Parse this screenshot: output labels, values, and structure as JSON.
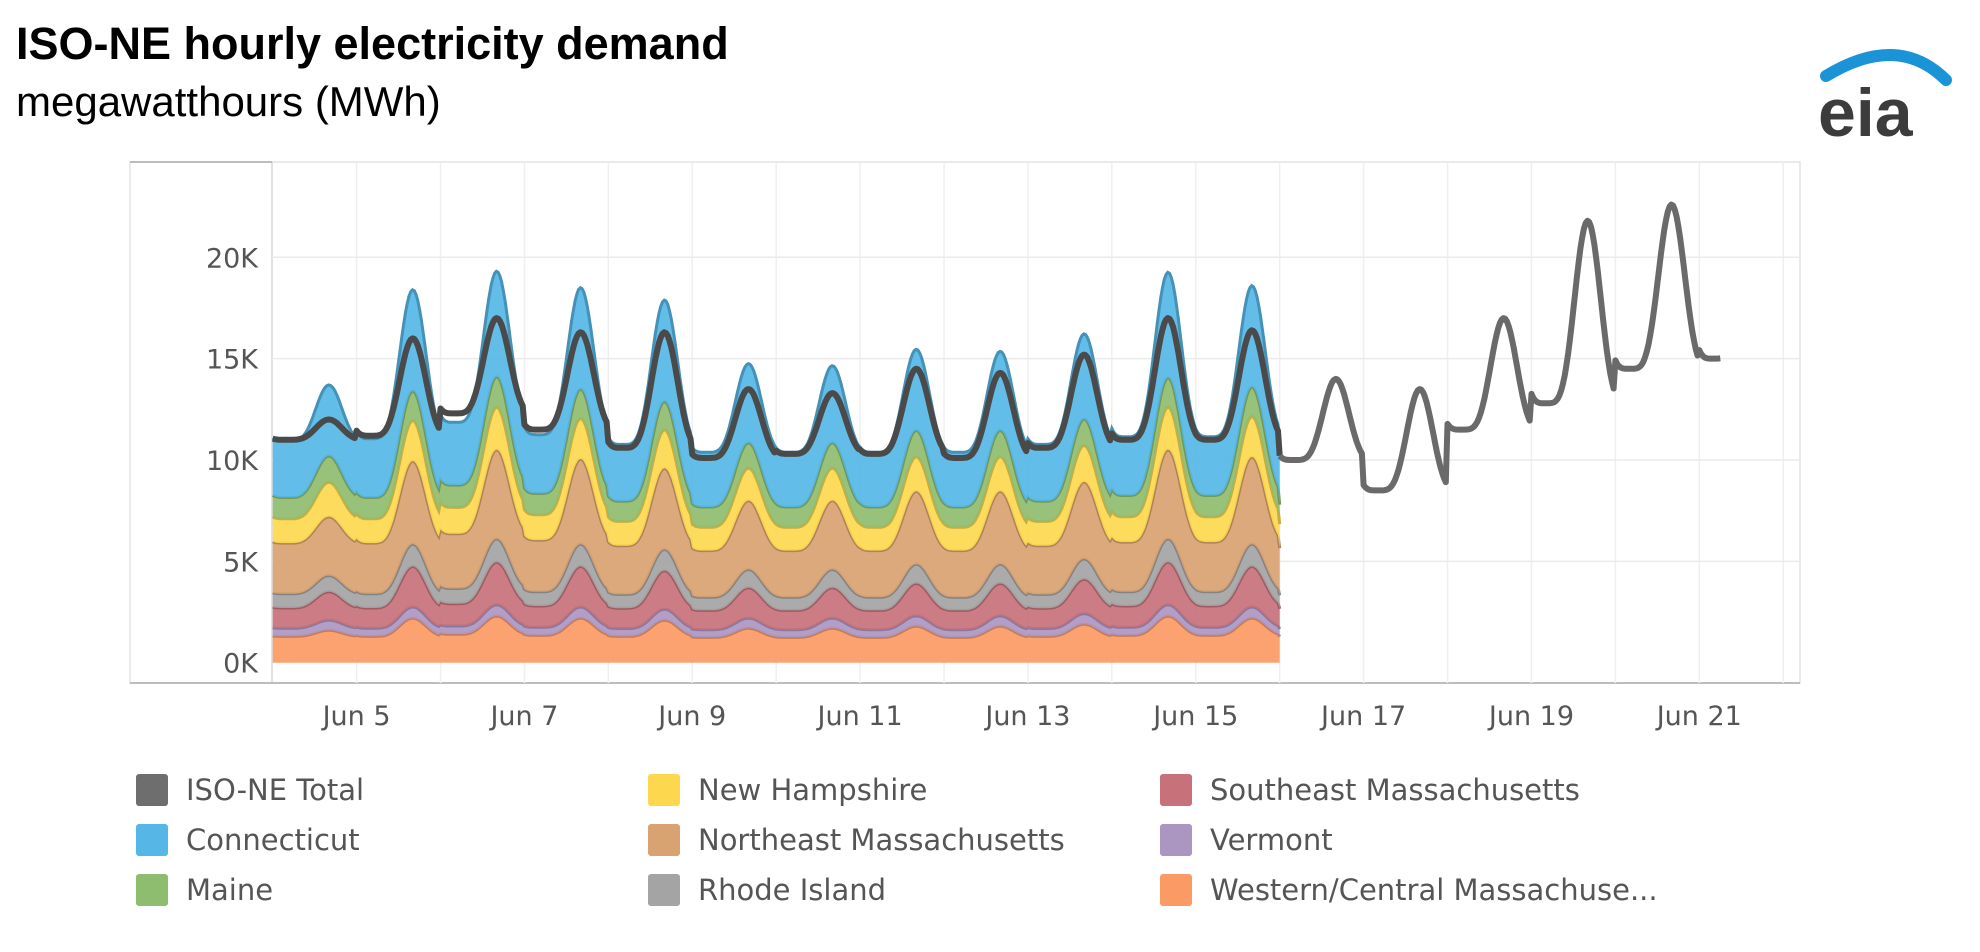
{
  "header": {
    "title": "ISO-NE hourly electricity demand",
    "subtitle": "megawatthours (MWh)"
  },
  "logo": {
    "text": "eia",
    "icon": "eia-logo",
    "arc_color": "#1a94d6",
    "text_color": "#3c3c3c"
  },
  "chart_data": {
    "type": "area",
    "title": "ISO-NE hourly electricity demand",
    "ylabel": "megawatthours (MWh)",
    "xlabel": "",
    "x_ticks": [
      "Jun 5",
      "Jun 7",
      "Jun 9",
      "Jun 11",
      "Jun 13",
      "Jun 15",
      "Jun 17",
      "Jun 19",
      "Jun 21"
    ],
    "x_tick_days": [
      5,
      7,
      9,
      11,
      13,
      15,
      17,
      19,
      21
    ],
    "y_ticks": [
      "0K",
      "5K",
      "10K",
      "15K",
      "20K"
    ],
    "y_tick_values": [
      0,
      5000,
      10000,
      15000,
      20000
    ],
    "xlim": [
      2.3,
      22.2
    ],
    "ylim": [
      -1000,
      24700
    ],
    "grid": true,
    "legend_position": "bottom",
    "stack_day_range": [
      4.0,
      16.0
    ],
    "total_line_day_range": [
      4.0,
      21.25
    ],
    "stack_order": [
      "Western/Central Massachuse...",
      "Vermont",
      "Southeast Massachusetts",
      "Rhode Island",
      "Northeast Massachusetts",
      "New Hampshire",
      "Maine",
      "Connecticut"
    ],
    "series": [
      {
        "name": "ISO-NE Total",
        "color": "#595959",
        "daily_peak": [
          [
            4,
            12000
          ],
          [
            5,
            16000
          ],
          [
            6,
            17000
          ],
          [
            7,
            16300
          ],
          [
            8,
            16300
          ],
          [
            9,
            13500
          ],
          [
            10,
            13300
          ],
          [
            11,
            14500
          ],
          [
            12,
            14300
          ],
          [
            13,
            15200
          ],
          [
            14,
            17000
          ],
          [
            15,
            16400
          ],
          [
            16,
            14000
          ],
          [
            17,
            13500
          ],
          [
            18,
            17000
          ],
          [
            19,
            21800
          ],
          [
            20,
            22600
          ],
          [
            21,
            23200
          ]
        ],
        "daily_min": [
          [
            4,
            11000
          ],
          [
            5,
            11200
          ],
          [
            6,
            12300
          ],
          [
            7,
            11500
          ],
          [
            8,
            10600
          ],
          [
            9,
            10100
          ],
          [
            10,
            10300
          ],
          [
            11,
            10300
          ],
          [
            12,
            10100
          ],
          [
            13,
            10600
          ],
          [
            14,
            11000
          ],
          [
            15,
            11000
          ],
          [
            16,
            10000
          ],
          [
            17,
            8500
          ],
          [
            18,
            11500
          ],
          [
            19,
            12800
          ],
          [
            20,
            14500
          ],
          [
            21,
            15000
          ]
        ],
        "forecast_from_day": 16.0
      },
      {
        "name": "Connecticut",
        "color": "#55b7e6",
        "daily_peak": [
          [
            4,
            3500
          ],
          [
            5,
            5000
          ],
          [
            6,
            5200
          ],
          [
            7,
            5000
          ],
          [
            8,
            5000
          ],
          [
            9,
            3900
          ],
          [
            10,
            3800
          ],
          [
            11,
            4000
          ],
          [
            12,
            3900
          ],
          [
            13,
            4200
          ],
          [
            14,
            5200
          ],
          [
            15,
            5000
          ],
          [
            16,
            4300
          ]
        ],
        "daily_min": [
          [
            4,
            2800
          ],
          [
            5,
            2900
          ],
          [
            6,
            3100
          ],
          [
            7,
            2900
          ],
          [
            8,
            2800
          ],
          [
            9,
            2700
          ],
          [
            10,
            2700
          ],
          [
            11,
            2700
          ],
          [
            12,
            2700
          ],
          [
            13,
            2800
          ],
          [
            14,
            2900
          ],
          [
            15,
            2900
          ],
          [
            16,
            2600
          ]
        ]
      },
      {
        "name": "Maine",
        "color": "#8fbd6f",
        "daily_peak": [
          [
            4,
            1300
          ],
          [
            5,
            1450
          ],
          [
            6,
            1500
          ],
          [
            7,
            1450
          ],
          [
            8,
            1400
          ],
          [
            9,
            1250
          ],
          [
            10,
            1250
          ],
          [
            11,
            1300
          ],
          [
            12,
            1300
          ],
          [
            13,
            1300
          ],
          [
            14,
            1450
          ],
          [
            15,
            1450
          ],
          [
            16,
            1300
          ]
        ],
        "daily_min": [
          [
            4,
            1050
          ],
          [
            5,
            1050
          ],
          [
            6,
            1100
          ],
          [
            7,
            1050
          ],
          [
            8,
            1000
          ],
          [
            9,
            1000
          ],
          [
            10,
            1000
          ],
          [
            11,
            1000
          ],
          [
            12,
            1000
          ],
          [
            13,
            1000
          ],
          [
            14,
            1050
          ],
          [
            15,
            1050
          ],
          [
            16,
            950
          ]
        ]
      },
      {
        "name": "New Hampshire",
        "color": "#fdd84e",
        "daily_peak": [
          [
            4,
            1700
          ],
          [
            5,
            2000
          ],
          [
            6,
            2100
          ],
          [
            7,
            2000
          ],
          [
            8,
            1900
          ],
          [
            9,
            1600
          ],
          [
            10,
            1600
          ],
          [
            11,
            1700
          ],
          [
            12,
            1700
          ],
          [
            13,
            1800
          ],
          [
            14,
            2100
          ],
          [
            15,
            2000
          ],
          [
            16,
            1800
          ]
        ],
        "daily_min": [
          [
            4,
            1200
          ],
          [
            5,
            1200
          ],
          [
            6,
            1300
          ],
          [
            7,
            1250
          ],
          [
            8,
            1200
          ],
          [
            9,
            1150
          ],
          [
            10,
            1150
          ],
          [
            11,
            1150
          ],
          [
            12,
            1150
          ],
          [
            13,
            1200
          ],
          [
            14,
            1250
          ],
          [
            15,
            1250
          ],
          [
            16,
            1150
          ]
        ]
      },
      {
        "name": "Northeast Massachusetts",
        "color": "#d9a271",
        "daily_peak": [
          [
            4,
            2900
          ],
          [
            5,
            4100
          ],
          [
            6,
            4400
          ],
          [
            7,
            4200
          ],
          [
            8,
            4000
          ],
          [
            9,
            3400
          ],
          [
            10,
            3400
          ],
          [
            11,
            3600
          ],
          [
            12,
            3600
          ],
          [
            13,
            3800
          ],
          [
            14,
            4400
          ],
          [
            15,
            4300
          ],
          [
            16,
            3700
          ]
        ],
        "daily_min": [
          [
            4,
            2500
          ],
          [
            5,
            2500
          ],
          [
            6,
            2700
          ],
          [
            7,
            2550
          ],
          [
            8,
            2400
          ],
          [
            9,
            2300
          ],
          [
            10,
            2300
          ],
          [
            11,
            2300
          ],
          [
            12,
            2300
          ],
          [
            13,
            2400
          ],
          [
            14,
            2450
          ],
          [
            15,
            2450
          ],
          [
            16,
            2250
          ]
        ]
      },
      {
        "name": "Rhode Island",
        "color": "#a4a4a4",
        "daily_peak": [
          [
            4,
            800
          ],
          [
            5,
            1100
          ],
          [
            6,
            1150
          ],
          [
            7,
            1100
          ],
          [
            8,
            1050
          ],
          [
            9,
            900
          ],
          [
            10,
            900
          ],
          [
            11,
            950
          ],
          [
            12,
            950
          ],
          [
            13,
            1000
          ],
          [
            14,
            1150
          ],
          [
            15,
            1100
          ],
          [
            16,
            1000
          ]
        ],
        "daily_min": [
          [
            4,
            700
          ],
          [
            5,
            700
          ],
          [
            6,
            750
          ],
          [
            7,
            700
          ],
          [
            8,
            680
          ],
          [
            9,
            650
          ],
          [
            10,
            650
          ],
          [
            11,
            650
          ],
          [
            12,
            650
          ],
          [
            13,
            680
          ],
          [
            14,
            700
          ],
          [
            15,
            700
          ],
          [
            16,
            650
          ]
        ]
      },
      {
        "name": "Southeast Massachusetts",
        "color": "#c7717a",
        "daily_peak": [
          [
            4,
            1400
          ],
          [
            5,
            2000
          ],
          [
            6,
            2100
          ],
          [
            7,
            2000
          ],
          [
            8,
            1900
          ],
          [
            9,
            1500
          ],
          [
            10,
            1500
          ],
          [
            11,
            1600
          ],
          [
            12,
            1600
          ],
          [
            13,
            1700
          ],
          [
            14,
            2100
          ],
          [
            15,
            2000
          ],
          [
            16,
            1700
          ]
        ],
        "daily_min": [
          [
            4,
            1000
          ],
          [
            5,
            1000
          ],
          [
            6,
            1100
          ],
          [
            7,
            1050
          ],
          [
            8,
            1000
          ],
          [
            9,
            950
          ],
          [
            10,
            950
          ],
          [
            11,
            950
          ],
          [
            12,
            950
          ],
          [
            13,
            1000
          ],
          [
            14,
            1050
          ],
          [
            15,
            1050
          ],
          [
            16,
            950
          ]
        ]
      },
      {
        "name": "Vermont",
        "color": "#ab96c2",
        "daily_peak": [
          [
            4,
            500
          ],
          [
            5,
            550
          ],
          [
            6,
            560
          ],
          [
            7,
            550
          ],
          [
            8,
            540
          ],
          [
            9,
            500
          ],
          [
            10,
            500
          ],
          [
            11,
            510
          ],
          [
            12,
            510
          ],
          [
            13,
            520
          ],
          [
            14,
            560
          ],
          [
            15,
            550
          ],
          [
            16,
            510
          ]
        ],
        "daily_min": [
          [
            4,
            400
          ],
          [
            5,
            400
          ],
          [
            6,
            410
          ],
          [
            7,
            400
          ],
          [
            8,
            390
          ],
          [
            9,
            380
          ],
          [
            10,
            380
          ],
          [
            11,
            380
          ],
          [
            12,
            380
          ],
          [
            13,
            390
          ],
          [
            14,
            400
          ],
          [
            15,
            400
          ],
          [
            16,
            380
          ]
        ]
      },
      {
        "name": "Western/Central Massachuse...",
        "color": "#fb9a64",
        "daily_peak": [
          [
            4,
            1600
          ],
          [
            5,
            2200
          ],
          [
            6,
            2300
          ],
          [
            7,
            2200
          ],
          [
            8,
            2100
          ],
          [
            9,
            1700
          ],
          [
            10,
            1700
          ],
          [
            11,
            1800
          ],
          [
            12,
            1800
          ],
          [
            13,
            1900
          ],
          [
            14,
            2300
          ],
          [
            15,
            2200
          ],
          [
            16,
            1900
          ]
        ],
        "daily_min": [
          [
            4,
            1300
          ],
          [
            5,
            1300
          ],
          [
            6,
            1400
          ],
          [
            7,
            1350
          ],
          [
            8,
            1300
          ],
          [
            9,
            1250
          ],
          [
            10,
            1250
          ],
          [
            11,
            1250
          ],
          [
            12,
            1250
          ],
          [
            13,
            1300
          ],
          [
            14,
            1350
          ],
          [
            15,
            1350
          ],
          [
            16,
            1250
          ]
        ]
      }
    ]
  },
  "legend": {
    "items": [
      {
        "label": "ISO-NE Total",
        "color": "#6e6e6e"
      },
      {
        "label": "Connecticut",
        "color": "#55b7e6"
      },
      {
        "label": "Maine",
        "color": "#8fbd6f"
      },
      {
        "label": "New Hampshire",
        "color": "#fdd84e"
      },
      {
        "label": "Northeast Massachusetts",
        "color": "#d9a271"
      },
      {
        "label": "Rhode Island",
        "color": "#a4a4a4"
      },
      {
        "label": "Southeast Massachusetts",
        "color": "#c7717a"
      },
      {
        "label": "Vermont",
        "color": "#ab96c2"
      },
      {
        "label": "Western/Central Massachuse...",
        "color": "#fb9a64"
      }
    ]
  }
}
